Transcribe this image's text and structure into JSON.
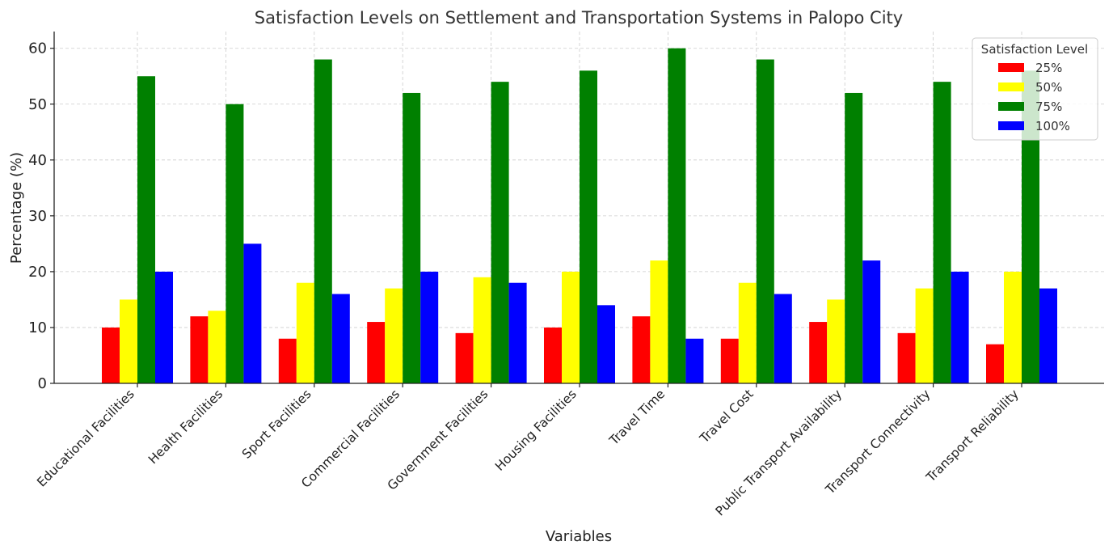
{
  "chart_data": {
    "type": "bar",
    "title": "Satisfaction Levels on Settlement and Transportation Systems in Palopo City",
    "xlabel": "Variables",
    "ylabel": "Percentage (%)",
    "ylim": [
      0,
      63
    ],
    "yticks": [
      0,
      10,
      20,
      30,
      40,
      50,
      60
    ],
    "grid": true,
    "legend_title": "Satisfaction Level",
    "legend_position": "top-right",
    "categories": [
      "Educational Facilities",
      "Health Facilities",
      "Sport Facilities",
      "Commercial Facilities",
      "Government Facilities",
      "Housing Facilities",
      "Travel Time",
      "Travel Cost",
      "Public Transport Availability",
      "Transport Connectivity",
      "Transport Reliability"
    ],
    "series": [
      {
        "name": "25%",
        "color": "#ff0000",
        "values": [
          10,
          12,
          8,
          11,
          9,
          10,
          12,
          8,
          11,
          9,
          7
        ]
      },
      {
        "name": "50%",
        "color": "#ffff00",
        "values": [
          15,
          13,
          18,
          17,
          19,
          20,
          22,
          18,
          15,
          17,
          20
        ]
      },
      {
        "name": "75%",
        "color": "#008000",
        "values": [
          55,
          50,
          58,
          52,
          54,
          56,
          60,
          58,
          52,
          54,
          56
        ]
      },
      {
        "name": "100%",
        "color": "#0000ff",
        "values": [
          20,
          25,
          16,
          20,
          18,
          14,
          8,
          16,
          22,
          20,
          17
        ]
      }
    ]
  }
}
